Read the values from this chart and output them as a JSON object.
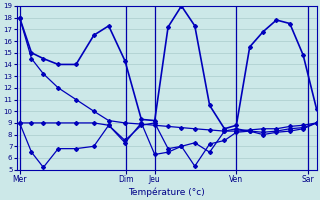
{
  "xlabel": "Température (°c)",
  "ylim": [
    5,
    19
  ],
  "yticks": [
    5,
    6,
    7,
    8,
    9,
    10,
    11,
    12,
    13,
    14,
    15,
    16,
    17,
    18,
    19
  ],
  "background_color": "#cce8e8",
  "grid_color": "#aacccc",
  "line_color": "#0000bb",
  "vline_color": "#0000aa",
  "day_labels": [
    "Mer",
    "Dim",
    "Jeu",
    "Ven",
    "Sar"
  ],
  "day_positions": [
    0.0,
    0.36,
    0.455,
    0.73,
    0.97
  ],
  "xlim": [
    -0.01,
    1.0
  ],
  "line_main": {
    "x": [
      0.0,
      0.04,
      0.08,
      0.13,
      0.19,
      0.25,
      0.3,
      0.355,
      0.41,
      0.455,
      0.5,
      0.545,
      0.59,
      0.64,
      0.69,
      0.73,
      0.775,
      0.82,
      0.865,
      0.91,
      0.955,
      1.0
    ],
    "y": [
      18,
      15,
      14.5,
      14,
      14,
      16.5,
      17.3,
      14.3,
      9.3,
      9.2,
      17.2,
      19,
      17.3,
      10.5,
      8.5,
      8.8,
      15.5,
      16.8,
      17.8,
      17.5,
      14.8,
      10.2
    ]
  },
  "line_slope": {
    "x": [
      0.0,
      0.04,
      0.08,
      0.13,
      0.19,
      0.25,
      0.3,
      0.355,
      0.41,
      0.455,
      0.5,
      0.545,
      0.59,
      0.64,
      0.69,
      0.73,
      0.775,
      0.82,
      0.865,
      0.91,
      0.955,
      1.0
    ],
    "y": [
      18,
      14.5,
      13.2,
      12.0,
      11.0,
      10.0,
      9.2,
      9.0,
      8.9,
      8.8,
      8.7,
      8.6,
      8.5,
      8.4,
      8.3,
      8.3,
      8.4,
      8.5,
      8.5,
      8.7,
      8.8,
      9.0
    ]
  },
  "line_flat1": {
    "x": [
      0.0,
      0.04,
      0.08,
      0.13,
      0.19,
      0.25,
      0.3,
      0.355,
      0.41,
      0.455,
      0.5,
      0.545,
      0.59,
      0.64,
      0.69,
      0.73,
      0.775,
      0.82,
      0.865,
      0.91,
      0.955,
      1.0
    ],
    "y": [
      9.0,
      9.0,
      9.0,
      9.0,
      9.0,
      9.0,
      8.8,
      7.5,
      8.8,
      9.0,
      6.8,
      7.0,
      7.3,
      6.5,
      8.3,
      8.5,
      8.3,
      8.2,
      8.3,
      8.5,
      8.6,
      9.0
    ]
  },
  "line_flat2": {
    "x": [
      0.0,
      0.04,
      0.08,
      0.13,
      0.19,
      0.25,
      0.3,
      0.355,
      0.41,
      0.455,
      0.5,
      0.545,
      0.59,
      0.64,
      0.69,
      0.73,
      0.775,
      0.82,
      0.865,
      0.91,
      0.955,
      1.0
    ],
    "y": [
      9.0,
      6.5,
      5.2,
      6.8,
      6.8,
      7.0,
      8.8,
      7.3,
      9.0,
      6.3,
      6.5,
      7.0,
      5.3,
      7.2,
      7.5,
      8.2,
      8.3,
      8.0,
      8.2,
      8.3,
      8.5,
      9.0
    ]
  }
}
